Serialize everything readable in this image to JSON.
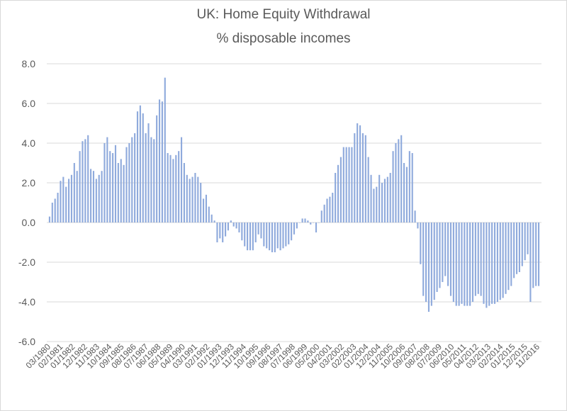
{
  "chart_data": {
    "type": "bar",
    "title": "UK: Home Equity Withdrawal",
    "subtitle": "% disposable incomes",
    "xlabel": "",
    "ylabel": "",
    "ylim": [
      -6.0,
      8.0
    ],
    "yticks": [
      "8.0",
      "6.0",
      "4.0",
      "2.0",
      "0.0",
      "-2.0",
      "-4.0",
      "-6.0"
    ],
    "grid": true,
    "legend": "none",
    "bar_color": "#8faadc",
    "x_tick_labels": [
      "03/1980",
      "02/1981",
      "01/1982",
      "12/1982",
      "11/1983",
      "10/1984",
      "09/1985",
      "08/1986",
      "07/1987",
      "06/1988",
      "05/1989",
      "04/1990",
      "03/1991",
      "02/1992",
      "01/1993",
      "12/1993",
      "11/1994",
      "10/1995",
      "09/1996",
      "08/1997",
      "07/1998",
      "06/1999",
      "05/2000",
      "04/2001",
      "03/2002",
      "02/2003",
      "01/2004",
      "12/2004",
      "11/2005",
      "10/2006",
      "09/2007",
      "08/2008",
      "07/2009",
      "06/2010",
      "05/2011",
      "04/2012",
      "03/2013",
      "02/2014",
      "01/2015",
      "12/2015",
      "11/2016"
    ],
    "values": [
      0.3,
      1.0,
      1.2,
      1.5,
      2.1,
      2.3,
      1.8,
      2.2,
      2.4,
      3.0,
      2.6,
      3.6,
      4.1,
      4.2,
      4.4,
      2.7,
      2.6,
      2.2,
      2.4,
      2.6,
      4.0,
      4.3,
      3.6,
      3.5,
      3.9,
      3.0,
      3.2,
      2.9,
      3.8,
      4.0,
      4.3,
      4.5,
      5.6,
      5.9,
      5.5,
      4.5,
      5.0,
      4.3,
      4.2,
      5.4,
      6.2,
      6.1,
      7.3,
      3.5,
      3.4,
      3.2,
      3.4,
      3.6,
      4.3,
      3.0,
      2.4,
      2.2,
      2.3,
      2.5,
      2.3,
      2.0,
      1.2,
      1.4,
      0.8,
      0.4,
      0.1,
      -1.0,
      -0.8,
      -1.0,
      -0.7,
      -0.4,
      0.1,
      -0.2,
      -0.3,
      -0.5,
      -0.9,
      -1.2,
      -1.4,
      -1.4,
      -1.4,
      -1.0,
      -0.6,
      -0.8,
      -1.2,
      -1.3,
      -1.4,
      -1.5,
      -1.5,
      -1.3,
      -1.4,
      -1.3,
      -1.2,
      -1.1,
      -0.9,
      -0.6,
      -0.3,
      0.0,
      0.2,
      0.2,
      0.1,
      -0.1,
      0.0,
      -0.5,
      0.0,
      0.6,
      0.9,
      1.2,
      1.3,
      1.5,
      2.5,
      2.9,
      3.3,
      3.8,
      3.8,
      3.8,
      3.8,
      4.5,
      5.0,
      4.9,
      4.5,
      4.4,
      3.3,
      2.4,
      1.7,
      1.8,
      2.4,
      2.0,
      2.2,
      2.3,
      2.5,
      3.6,
      4.0,
      4.2,
      4.4,
      3.0,
      2.8,
      3.6,
      3.5,
      0.6,
      -0.3,
      -2.1,
      -3.7,
      -4.0,
      -4.5,
      -4.2,
      -3.9,
      -3.5,
      -3.3,
      -3.0,
      -2.7,
      -3.2,
      -3.7,
      -4.0,
      -4.2,
      -4.2,
      -4.1,
      -4.2,
      -4.2,
      -4.2,
      -4.0,
      -3.7,
      -3.6,
      -3.7,
      -4.1,
      -4.3,
      -4.2,
      -4.1,
      -4.1,
      -4.0,
      -3.9,
      -3.8,
      -3.6,
      -3.4,
      -3.2,
      -2.8,
      -2.6,
      -2.5,
      -2.2,
      -1.9,
      -1.6,
      -4.0,
      -3.3,
      -3.2,
      -3.2
    ]
  }
}
